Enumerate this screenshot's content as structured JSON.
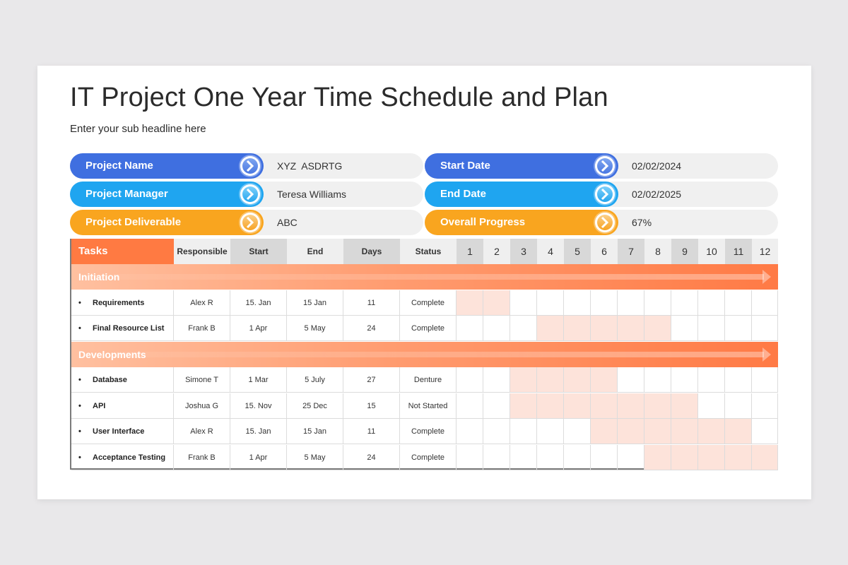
{
  "title": "IT Project One Year Time Schedule and Plan",
  "subtitle": "Enter your sub headline here",
  "info": [
    {
      "label": "Project Name",
      "value": "XYZ  ASDRTG",
      "color": "#3f6fe0"
    },
    {
      "label": "Project Manager",
      "value": "Teresa Williams",
      "color": "#1fa5f0"
    },
    {
      "label": "Project Deliverable",
      "value": "ABC",
      "color": "#f9a51f"
    },
    {
      "label": "Start Date",
      "value": "02/02/2024",
      "color": "#3f6fe0"
    },
    {
      "label": "End Date",
      "value": "02/02/2025",
      "color": "#1fa5f0"
    },
    {
      "label": "Overall Progress",
      "value": "67%",
      "color": "#f9a51f"
    }
  ],
  "table": {
    "headers": {
      "tasks": "Tasks",
      "responsible": "Responsible",
      "start": "Start",
      "end": "End",
      "days": "Days",
      "status": "Status",
      "months": [
        "1",
        "2",
        "3",
        "4",
        "5",
        "6",
        "7",
        "8",
        "9",
        "10",
        "11",
        "12"
      ]
    },
    "sections": [
      {
        "name": "Initiation",
        "rows": [
          {
            "task": "Requirements",
            "responsible": "Alex R",
            "start": "15. Jan",
            "end": "15 Jan",
            "days": "11",
            "status": "Complete",
            "months": [
              1,
              2
            ]
          },
          {
            "task": "Final Resource List",
            "responsible": "Frank B",
            "start": "1 Apr",
            "end": "5 May",
            "days": "24",
            "status": "Complete",
            "months": [
              4,
              5,
              6,
              7,
              8
            ]
          }
        ]
      },
      {
        "name": "Developments",
        "rows": [
          {
            "task": "Database",
            "responsible": "Simone T",
            "start": "1 Mar",
            "end": "5 July",
            "days": "27",
            "status": "Denture",
            "months": [
              3,
              4,
              5,
              6
            ]
          },
          {
            "task": "API",
            "responsible": "Joshua G",
            "start": "15. Nov",
            "end": "25 Dec",
            "days": "15",
            "status": "Not Started",
            "months": [
              3,
              4,
              5,
              6,
              7,
              8,
              9
            ]
          },
          {
            "task": "User Interface",
            "responsible": "Alex R",
            "start": "15. Jan",
            "end": "15 Jan",
            "days": "11",
            "status": "Complete",
            "months": [
              6,
              7,
              8,
              9,
              10,
              11
            ]
          },
          {
            "task": "Acceptance Testing",
            "responsible": "Frank B",
            "start": "1 Apr",
            "end": "5 May",
            "days": "24",
            "status": "Complete",
            "months": [
              8,
              9,
              10,
              11,
              12
            ]
          }
        ]
      }
    ]
  }
}
